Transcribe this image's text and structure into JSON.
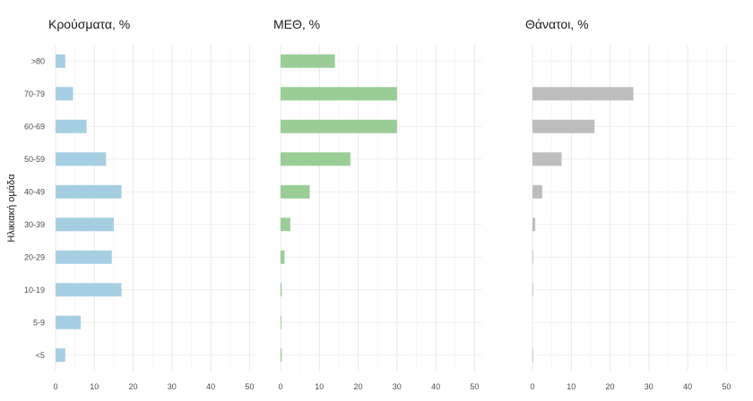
{
  "chart_data": {
    "type": "bar",
    "orientation": "horizontal",
    "ylabel": "Ηλικιακή ομάδα",
    "categories": [
      ">80",
      "70-79",
      "60-69",
      "50-59",
      "40-49",
      "30-39",
      "20-29",
      "10-19",
      "5-9",
      "<5"
    ],
    "xlim": [
      0,
      52
    ],
    "xticks": [
      0,
      10,
      20,
      30,
      40,
      50
    ],
    "grid": true,
    "panels": [
      {
        "title": "Κρούσματα, %",
        "color": "#a6cee3",
        "values": [
          2.5,
          4.5,
          8,
          13,
          17,
          15,
          14.5,
          17,
          6.5,
          2.5
        ]
      },
      {
        "title": "ΜΕΘ, %",
        "color": "#9acd96",
        "values": [
          14,
          30,
          30,
          18,
          7.5,
          2.5,
          1,
          0.3,
          0.2,
          0.3
        ]
      },
      {
        "title": "Θάνατοι, %",
        "color": "#bdbdbd",
        "values": [
          0,
          26,
          16,
          7.5,
          2.5,
          0.7,
          0.2,
          0.1,
          0,
          0.1
        ]
      }
    ]
  }
}
